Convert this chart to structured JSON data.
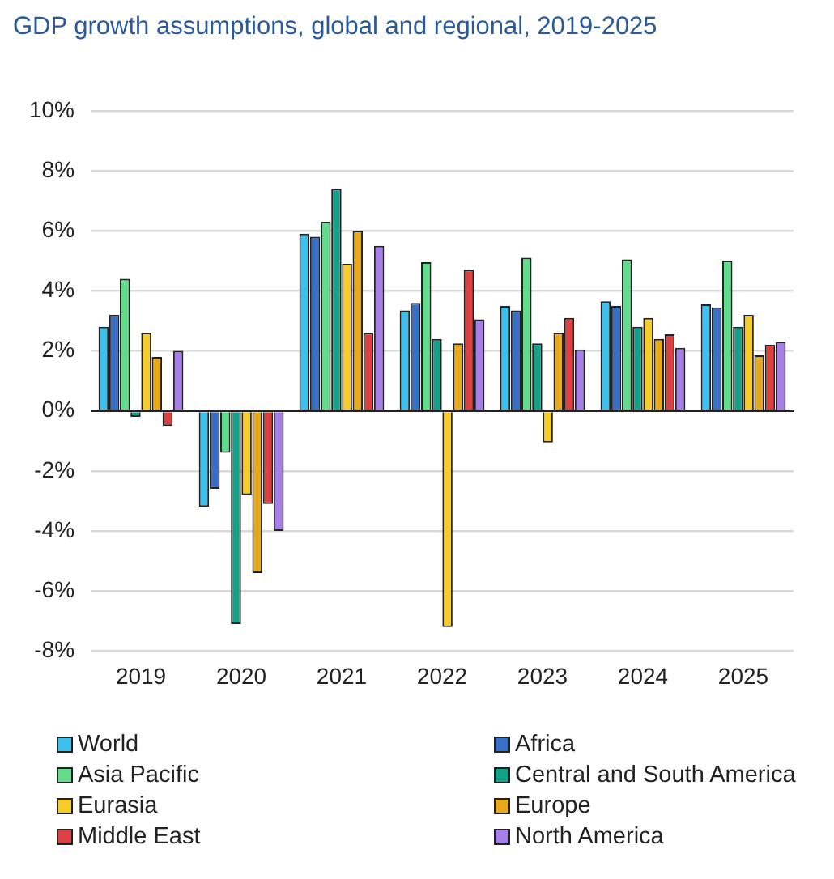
{
  "chart_data": {
    "type": "bar",
    "title": "GDP growth assumptions, global and regional, 2019-2025",
    "categories": [
      "2019",
      "2020",
      "2021",
      "2022",
      "2023",
      "2024",
      "2025"
    ],
    "series": [
      {
        "name": "World",
        "color": "#3ec0ee",
        "values": [
          2.8,
          -3.2,
          5.9,
          3.35,
          3.5,
          3.65,
          3.55
        ]
      },
      {
        "name": "Africa",
        "color": "#3a6fc8",
        "values": [
          3.2,
          -2.6,
          5.8,
          3.6,
          3.35,
          3.5,
          3.45
        ]
      },
      {
        "name": "Asia Pacific",
        "color": "#62dc8c",
        "values": [
          4.4,
          -1.4,
          6.3,
          4.95,
          5.1,
          5.05,
          5.0
        ]
      },
      {
        "name": "Central and South America",
        "color": "#15a08a",
        "values": [
          -0.2,
          -7.1,
          7.4,
          2.4,
          2.25,
          2.8,
          2.8
        ]
      },
      {
        "name": "Eurasia",
        "color": "#f6cc2a",
        "values": [
          2.6,
          -2.8,
          4.9,
          -7.2,
          -1.05,
          3.1,
          3.2
        ]
      },
      {
        "name": "Europe",
        "color": "#e8a81e",
        "values": [
          1.8,
          -5.4,
          6.0,
          2.25,
          2.6,
          2.4,
          1.85
        ]
      },
      {
        "name": "Middle East",
        "color": "#dc4040",
        "values": [
          -0.5,
          -3.1,
          2.6,
          4.7,
          3.1,
          2.55,
          2.2
        ]
      },
      {
        "name": "North America",
        "color": "#a87ee8",
        "values": [
          2.0,
          -4.0,
          5.5,
          3.05,
          2.05,
          2.1,
          2.3
        ]
      }
    ],
    "ylim": [
      -8,
      10
    ],
    "yticks": [
      {
        "value": -8,
        "label": "-8%"
      },
      {
        "value": -6,
        "label": "-6%"
      },
      {
        "value": -4,
        "label": "-4%"
      },
      {
        "value": -2,
        "label": "-2%"
      },
      {
        "value": 0,
        "label": "0%"
      },
      {
        "value": 2,
        "label": "2%"
      },
      {
        "value": 4,
        "label": "4%"
      },
      {
        "value": 6,
        "label": "6%"
      },
      {
        "value": 8,
        "label": "8%"
      },
      {
        "value": 10,
        "label": "10%"
      }
    ],
    "grid": "y",
    "legend": "bottom"
  }
}
